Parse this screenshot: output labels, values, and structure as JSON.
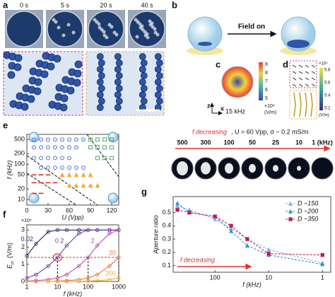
{
  "panel_a": {
    "label": "a",
    "times": [
      "0 s",
      "5 s",
      "20 s",
      "40 s"
    ]
  },
  "panel_b": {
    "label": "b",
    "arrow_text": "Field on"
  },
  "panel_c": {
    "label": "c",
    "frequency": "15 kHz",
    "colorbar_ticks": [
      9,
      8,
      7,
      6,
      5
    ],
    "colorbar_scale": "×10⁴",
    "colorbar_unit": "(V/m)",
    "axis_z": "z",
    "axis_x": "x"
  },
  "panel_d": {
    "label": "d",
    "colorbar_scale": "×10⁴",
    "colorbar_ticks": [
      5.8,
      5.6,
      5.4,
      5.2
    ],
    "colorbar_unit": "(V/m)"
  },
  "chart_data": [
    {
      "type": "scatter",
      "panel_label": "e",
      "x_label": "U (Vpp)",
      "y_label": "f (kHz)",
      "log_y": true,
      "xlim": [
        0,
        130
      ],
      "ylim": [
        7,
        700
      ],
      "xticks": [
        0,
        30,
        60,
        90,
        120
      ],
      "yticks": [
        10,
        20,
        50,
        100,
        200,
        500
      ],
      "series": [
        {
          "marker": "circle",
          "color": "#3a5fcd",
          "x": [
            10,
            20,
            30,
            40,
            50,
            60,
            70,
            80,
            10,
            20,
            30,
            40,
            50,
            60,
            70,
            10,
            20,
            30,
            40,
            50,
            60,
            20,
            30,
            40,
            50,
            60,
            70,
            80
          ],
          "values": [
            500,
            500,
            500,
            500,
            500,
            500,
            500,
            500,
            300,
            300,
            300,
            300,
            300,
            300,
            300,
            150,
            150,
            150,
            150,
            150,
            150,
            80,
            80,
            80,
            80,
            80,
            80,
            80
          ]
        },
        {
          "marker": "square",
          "color": "#3aa34a",
          "x": [
            90,
            100,
            110,
            120,
            90,
            100,
            110,
            120,
            100,
            110,
            120
          ],
          "values": [
            500,
            500,
            500,
            500,
            300,
            300,
            300,
            300,
            150,
            150,
            150
          ]
        },
        {
          "marker": "dash",
          "color": "#d62f2f",
          "x": [
            10,
            20,
            30,
            10,
            20,
            30,
            40,
            10,
            20
          ],
          "values": [
            50,
            50,
            50,
            30,
            30,
            30,
            30,
            15,
            15
          ]
        },
        {
          "marker": "triangle",
          "color": "#f0a830",
          "x": [
            50,
            60,
            70,
            80,
            90,
            60,
            70,
            80,
            90,
            100
          ],
          "values": [
            50,
            50,
            50,
            50,
            50,
            25,
            25,
            25,
            25,
            25
          ]
        }
      ]
    },
    {
      "type": "line",
      "panel_label": "f",
      "x_label": "f (kHz)",
      "y_label": "E",
      "y_label_sub": "in",
      "y_label_unit": "(V/m)",
      "y_scale": "×10⁴",
      "log_x": true,
      "xlim": [
        1,
        1000
      ],
      "ylim": [
        0,
        3.3
      ],
      "xticks": [
        1,
        10,
        100,
        1000
      ],
      "yticks": [
        0,
        1,
        2,
        3
      ],
      "threshold": 1.4,
      "marked_x": [
        10,
        100,
        1000
      ],
      "x": [
        1,
        2,
        5,
        10,
        20,
        50,
        100,
        200,
        500,
        1000
      ],
      "series": [
        {
          "name": "0.02",
          "color": "#1f2a6b",
          "values": [
            1.5,
            2.2,
            2.9,
            3,
            3,
            3,
            3,
            3,
            3,
            3
          ]
        },
        {
          "name": "0.2",
          "color": "#6a3fa8",
          "values": [
            0.2,
            0.4,
            0.9,
            1.4,
            2.1,
            2.8,
            3,
            3,
            3,
            3
          ]
        },
        {
          "name": "2",
          "color": "#b44fa0",
          "values": [
            0.02,
            0.05,
            0.1,
            0.2,
            0.4,
            0.9,
            1.4,
            2.1,
            2.8,
            3
          ]
        },
        {
          "name": "20",
          "color": "#e0783a",
          "values": [
            0,
            0,
            0,
            0.02,
            0.05,
            0.1,
            0.2,
            0.4,
            0.9,
            1.4
          ]
        },
        {
          "name": "200",
          "color": "#f0b030",
          "values": [
            0,
            0,
            0,
            0,
            0,
            0.01,
            0.02,
            0.05,
            0.1,
            0.2
          ]
        }
      ]
    },
    {
      "type": "line",
      "panel_label": "g",
      "header_italic": "f decreasing",
      "header_rest": ", U = 60 Vpp, σ ~ 0.2 mS/m",
      "image_labels": [
        "500",
        "300",
        "100",
        "50",
        "25",
        "10",
        "1 (kHz)"
      ],
      "x_label": "f (kHz)",
      "y_label": "Aperture ratio",
      "annotation": "f decreasing",
      "legend": "upper right",
      "log_x": true,
      "xlim": [
        600,
        0.7
      ],
      "ylim": [
        0.05,
        0.62
      ],
      "xticks": [
        100,
        10,
        1
      ],
      "yticks": [
        0.1,
        0.2,
        0.3,
        0.4,
        0.5
      ],
      "x": [
        500,
        300,
        100,
        50,
        25,
        10,
        1
      ],
      "series": [
        {
          "name": "D ~150",
          "color": "#7fb0e8",
          "marker": "triangle",
          "values": [
            0.55,
            0.52,
            0.45,
            0.38,
            0.3,
            0.22,
            0.12
          ]
        },
        {
          "name": "D ~200",
          "color": "#2f8fd6",
          "marker": "triangle",
          "values": [
            0.57,
            0.5,
            0.47,
            0.36,
            0.25,
            0.18,
            0.11
          ]
        },
        {
          "name": "D ~350",
          "color": "#c2185b",
          "marker": "square",
          "values": [
            0.52,
            0.5,
            0.47,
            0.4,
            0.3,
            0.19,
            0.18
          ]
        }
      ]
    }
  ]
}
